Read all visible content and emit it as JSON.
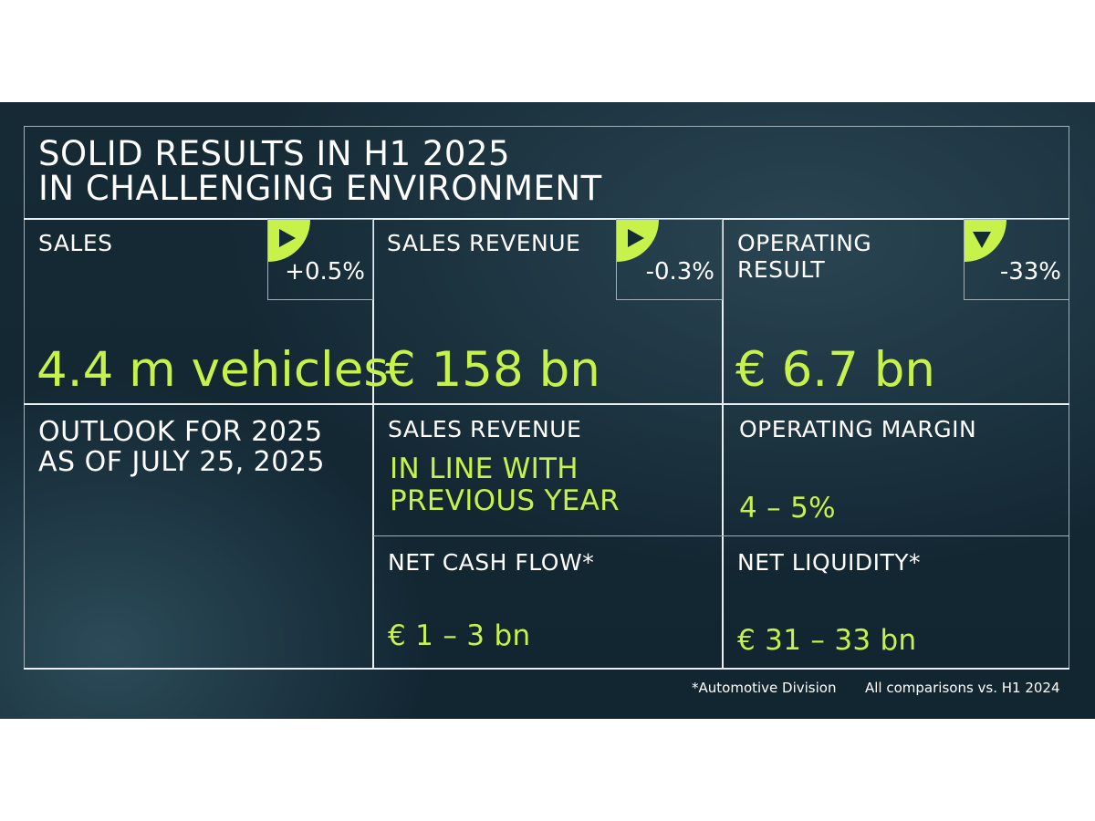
{
  "title": {
    "line1": "SOLID RESULTS IN H1 2025",
    "line2": "IN CHALLENGING ENVIRONMENT"
  },
  "kpis": [
    {
      "label": "SALES",
      "change": "+0.5%",
      "trend": "right",
      "value": "4.4 m vehicles"
    },
    {
      "label": "SALES REVENUE",
      "change": "-0.3%",
      "trend": "right",
      "value": "€ 158 bn"
    },
    {
      "label_line1": "OPERATING",
      "label_line2": "RESULT",
      "change": "-33%",
      "trend": "down",
      "value": "€ 6.7 bn"
    }
  ],
  "outlook": {
    "heading_line1": "OUTLOOK FOR 2025",
    "heading_line2": "AS OF JULY 25, 2025",
    "sales_revenue": {
      "label": "SALES REVENUE",
      "value_line1": "IN LINE WITH",
      "value_line2": "PREVIOUS YEAR"
    },
    "operating_margin": {
      "label": "OPERATING MARGIN",
      "value": "4 – 5%"
    },
    "net_cash_flow": {
      "label": "NET CASH FLOW*",
      "value": "€ 1 – 3 bn"
    },
    "net_liquidity": {
      "label": "NET LIQUIDITY*",
      "value": "€ 31 – 33 bn"
    }
  },
  "footnotes": {
    "division": "*Automotive Division",
    "comparison": "All comparisons vs. H1 2024"
  },
  "colors": {
    "accent": "#c6f24b",
    "background": "#152a35",
    "text": "#ffffff"
  },
  "icons": {
    "up_trend": "triangle-right-icon",
    "down_trend": "triangle-down-icon"
  }
}
